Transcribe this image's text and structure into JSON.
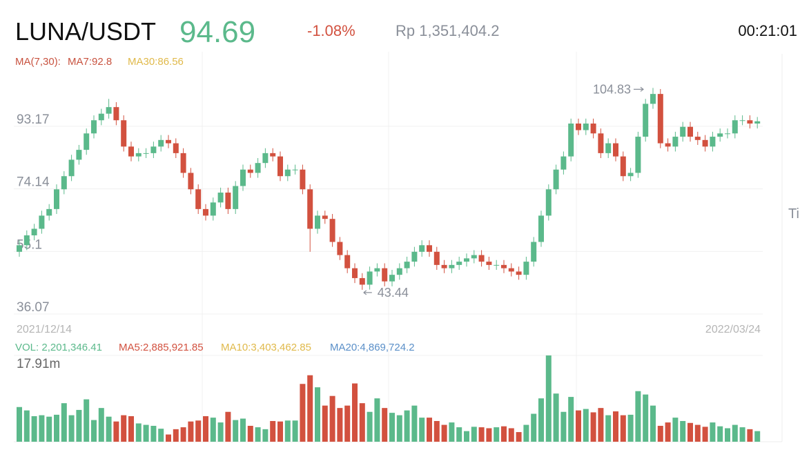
{
  "header": {
    "pair": "LUNA/USDT",
    "price": "94.69",
    "change": "-1.08%",
    "local_price": "Rp 1,351,404.2",
    "time": "00:21:01"
  },
  "chart_data": {
    "type": "candlestick",
    "colors": {
      "up": "#5bb98b",
      "down": "#d2513f"
    },
    "indicators": {
      "label": "MA(7,30):",
      "ma7": "MA7:92.8",
      "ma30": "MA30:86.56"
    },
    "x_labels": [
      "2021/12/14",
      "2022/03/24"
    ],
    "side_label": "Ti",
    "ylim": [
      36.07,
      115.2
    ],
    "yticks": [
      36.07,
      55.1,
      74.14,
      93.17
    ],
    "grid": true,
    "open": [
      55,
      57,
      60,
      62,
      66,
      68,
      74,
      78,
      83,
      86,
      91,
      95,
      97,
      99,
      95,
      87,
      84,
      85,
      85,
      87,
      89,
      88,
      85,
      79,
      74,
      68,
      66,
      70,
      73,
      68,
      75,
      80,
      79,
      82,
      85,
      84,
      78,
      80,
      80,
      74,
      62,
      66,
      65,
      58,
      54,
      50,
      47,
      45,
      49,
      50,
      46,
      48,
      50,
      52,
      55,
      57,
      55,
      51,
      50,
      51,
      52,
      53,
      54,
      52,
      51,
      51,
      50,
      49,
      48,
      52,
      58,
      66,
      74,
      80,
      84,
      94,
      92,
      94,
      91,
      85,
      88,
      84,
      78,
      79,
      90,
      100,
      103,
      88,
      87,
      90,
      93,
      90,
      89,
      87,
      90,
      91,
      91,
      95,
      95,
      94
    ],
    "high": [
      58.5,
      61.5,
      63.5,
      67.5,
      69.5,
      75.5,
      79.5,
      84.5,
      87.5,
      92.5,
      96.5,
      98.5,
      101.5,
      100.5,
      96.5,
      88.5,
      86.5,
      86.5,
      88.5,
      90.5,
      90.5,
      89.5,
      86.5,
      80.5,
      75.5,
      69.5,
      71.5,
      74.5,
      74.5,
      76.5,
      81.5,
      81.5,
      83.5,
      86.5,
      86.5,
      85.5,
      81.5,
      81.5,
      81.5,
      75.5,
      67.5,
      67.5,
      66.5,
      59.5,
      55.5,
      51.5,
      48.5,
      50.5,
      51.5,
      51.5,
      49.5,
      51.5,
      53.5,
      56.5,
      58.5,
      58.5,
      56.5,
      52.5,
      52.5,
      53.5,
      54.5,
      55.5,
      55.5,
      53.5,
      52.5,
      52.5,
      51.5,
      50.5,
      53.5,
      59.5,
      67.5,
      75.5,
      81.5,
      85.5,
      95.5,
      95.5,
      95.5,
      95.5,
      92.5,
      89.5,
      89.5,
      85.5,
      80.5,
      91.5,
      101.5,
      104.83,
      104.5,
      89.5,
      91.5,
      94.5,
      94.5,
      91.5,
      90.5,
      91.5,
      92.5,
      92.5,
      96.5,
      96.5,
      96.5,
      96
    ],
    "low": [
      53.5,
      55.5,
      58.5,
      60.5,
      64.5,
      66.5,
      72.5,
      76.5,
      81.5,
      84.5,
      89.5,
      93.5,
      95.5,
      93.5,
      85.5,
      82.5,
      82.5,
      83.5,
      83.5,
      85.5,
      86.5,
      83.5,
      77.5,
      72.5,
      66.5,
      64.5,
      64.5,
      68.5,
      66.5,
      66.5,
      73.5,
      77.5,
      77.5,
      80.5,
      82.5,
      76.5,
      76.5,
      78.5,
      72.5,
      55,
      60.5,
      63.5,
      56.5,
      52.5,
      48.5,
      45.5,
      43.44,
      43.5,
      47.5,
      44.5,
      44.5,
      46.5,
      48.5,
      50.5,
      53.5,
      53.5,
      49.5,
      48.5,
      48.5,
      49.5,
      50.5,
      51.5,
      50.5,
      49.5,
      49.5,
      48.5,
      47.5,
      46.5,
      46.5,
      50.5,
      56.5,
      64.5,
      72.5,
      78.5,
      82.5,
      90.5,
      90.5,
      89.5,
      83.5,
      83.5,
      82.5,
      76.5,
      76.5,
      77.5,
      88.5,
      98.5,
      86.5,
      85.5,
      85.5,
      88.5,
      88.5,
      87.5,
      85.5,
      85.5,
      88.5,
      89.5,
      89.5,
      93.5,
      92.5,
      92.5
    ],
    "close": [
      57,
      60,
      62,
      66,
      68,
      74,
      78,
      83,
      86,
      91,
      95,
      97,
      99,
      95,
      87,
      84,
      85,
      85,
      87,
      89,
      88,
      85,
      79,
      74,
      68,
      66,
      70,
      73,
      68,
      75,
      80,
      79,
      82,
      85,
      84,
      78,
      80,
      80,
      74,
      62,
      66,
      65,
      58,
      54,
      50,
      47,
      45,
      49,
      50,
      46,
      48,
      50,
      52,
      55,
      57,
      55,
      51,
      50,
      51,
      52,
      53,
      54,
      52,
      51,
      51,
      50,
      49,
      48,
      52,
      58,
      66,
      74,
      80,
      84,
      94,
      92,
      94,
      91,
      85,
      88,
      84,
      78,
      79,
      90,
      100,
      103,
      88,
      87,
      90,
      93,
      90,
      89,
      87,
      90,
      91,
      91,
      95,
      95,
      94,
      94.69
    ],
    "volume_indicators": {
      "vol": "VOL: 2,201,346.41",
      "ma5": "MA5:2,885,921.85",
      "ma10": "MA10:3,403,462.85",
      "ma20": "MA20:4,869,724.2"
    },
    "vlim": [
      0,
      17910000
    ],
    "vticks": [
      {
        "value": 17910000,
        "label": "17.91m"
      }
    ],
    "volume": [
      7200000,
      6500000,
      5300000,
      5500000,
      5200000,
      5600000,
      8000000,
      5500000,
      6600000,
      8800000,
      4500000,
      7000000,
      5200000,
      4200000,
      5500000,
      5300000,
      3800000,
      3500000,
      3300000,
      2700000,
      1500000,
      2600000,
      3000000,
      4200000,
      4400000,
      5300000,
      5000000,
      4000000,
      6200000,
      4500000,
      4800000,
      3300000,
      3000000,
      2600000,
      4300000,
      4200000,
      4400000,
      4400000,
      12000000,
      13800000,
      11300000,
      7500000,
      9500000,
      7000000,
      7500000,
      12100000,
      8000000,
      6200000,
      9000000,
      7000000,
      6000000,
      5500000,
      6500000,
      7500000,
      5000000,
      5000000,
      4300000,
      3500000,
      4000000,
      3000000,
      2200000,
      3100000,
      3000000,
      2800000,
      3000000,
      3200000,
      2800000,
      2000000,
      3500000,
      5800000,
      9000000,
      17910000,
      10000000,
      6200000,
      9300000,
      6500000,
      6800000,
      6100000,
      7000000,
      5500000,
      6300000,
      5500000,
      5600000,
      10500000,
      9800000,
      7500000,
      3300000,
      4000000,
      5000000,
      4300000,
      3900000,
      3500000,
      3100000,
      4000000,
      3200000,
      2800000,
      3500000,
      3000000,
      2600000,
      2201346.41
    ]
  }
}
